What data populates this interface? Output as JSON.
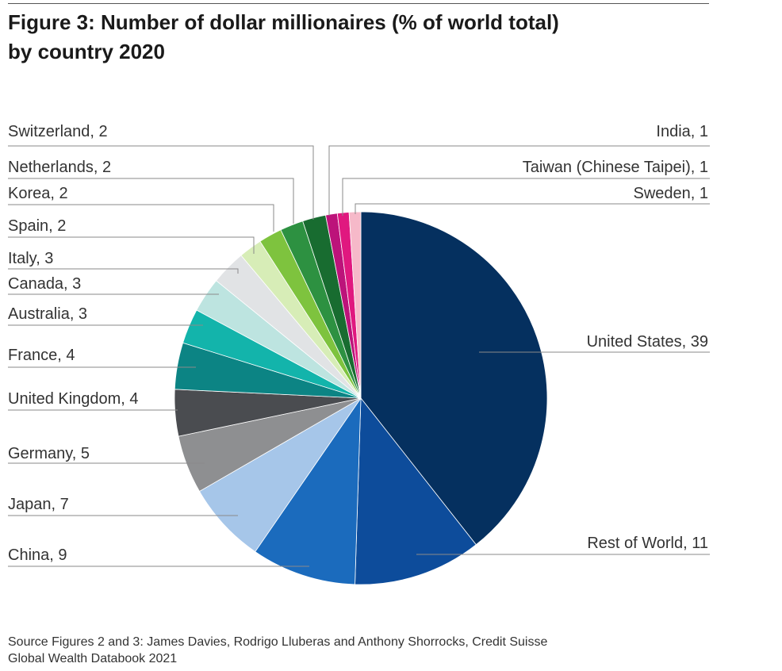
{
  "title_line1": "Figure 3: Number of dollar millionaires (% of world total)",
  "title_line2": "by country 2020",
  "source_line1": "Source Figures 2 and 3: James Davies, Rodrigo Lluberas and Anthony Shorrocks, Credit Suisse",
  "source_line2": "Global Wealth Databook 2021",
  "chart_data": {
    "type": "pie",
    "title": "Figure 3: Number of dollar millionaires (% of world total) by country 2020",
    "unit": "% of world total",
    "slices": [
      {
        "label": "United States, 39",
        "name": "United States",
        "value": 39,
        "color": "#05305f"
      },
      {
        "label": "Rest of World, 11",
        "name": "Rest of World",
        "value": 11,
        "color": "#0d4c9b"
      },
      {
        "label": "China, 9",
        "name": "China",
        "value": 9,
        "color": "#1b6bbd"
      },
      {
        "label": "Japan, 7",
        "name": "Japan",
        "value": 7,
        "color": "#a6c6e9"
      },
      {
        "label": "Germany, 5",
        "name": "Germany",
        "value": 5,
        "color": "#8e8f91"
      },
      {
        "label": "United Kingdom, 4",
        "name": "United Kingdom",
        "value": 4,
        "color": "#4a4c50"
      },
      {
        "label": "France, 4",
        "name": "France",
        "value": 4,
        "color": "#0c8484"
      },
      {
        "label": "Australia, 3",
        "name": "Australia",
        "value": 3,
        "color": "#13b4ab"
      },
      {
        "label": "Canada, 3",
        "name": "Canada",
        "value": 3,
        "color": "#bde4e0"
      },
      {
        "label": "Italy, 3",
        "name": "Italy",
        "value": 3,
        "color": "#e1e3e5"
      },
      {
        "label": "Spain, 2",
        "name": "Spain",
        "value": 2,
        "color": "#d7edb7"
      },
      {
        "label": "Korea, 2",
        "name": "Korea",
        "value": 2,
        "color": "#7ec33e"
      },
      {
        "label": "Netherlands, 2",
        "name": "Netherlands",
        "value": 2,
        "color": "#2d9141"
      },
      {
        "label": "Switzerland, 2",
        "name": "Switzerland",
        "value": 2,
        "color": "#186c30"
      },
      {
        "label": "India, 1",
        "name": "India",
        "value": 1,
        "color": "#bc137a"
      },
      {
        "label": "Taiwan (Chinese Taipei), 1",
        "name": "Taiwan (Chinese Taipei)",
        "value": 1,
        "color": "#e0187f"
      },
      {
        "label": "Sweden, 1",
        "name": "Sweden",
        "value": 1,
        "color": "#f6b9c9"
      }
    ],
    "label_placement": "leader lines to labels at left and right"
  }
}
